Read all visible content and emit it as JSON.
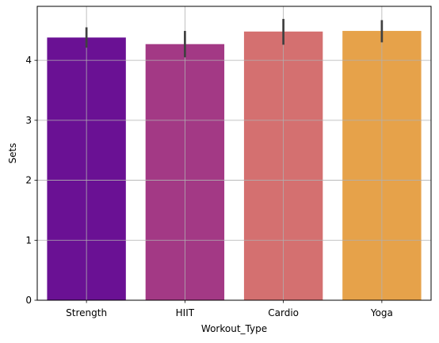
{
  "chart_data": {
    "type": "bar",
    "categories": [
      "Strength",
      "HIIT",
      "Cardio",
      "Yoga"
    ],
    "values": [
      4.38,
      4.27,
      4.48,
      4.49
    ],
    "error_bars": [
      {
        "low": 4.21,
        "high": 4.55
      },
      {
        "low": 4.05,
        "high": 4.49
      },
      {
        "low": 4.26,
        "high": 4.69
      },
      {
        "low": 4.3,
        "high": 4.67
      }
    ],
    "colors": [
      "#6a1194",
      "#a33985",
      "#d47070",
      "#e6a24a"
    ],
    "error_color": "#404040",
    "xlabel": "Workout_Type",
    "ylabel": "Sets",
    "ylim": [
      0,
      4.9
    ],
    "yticks": [
      0,
      1,
      2,
      3,
      4
    ],
    "grid": true
  }
}
